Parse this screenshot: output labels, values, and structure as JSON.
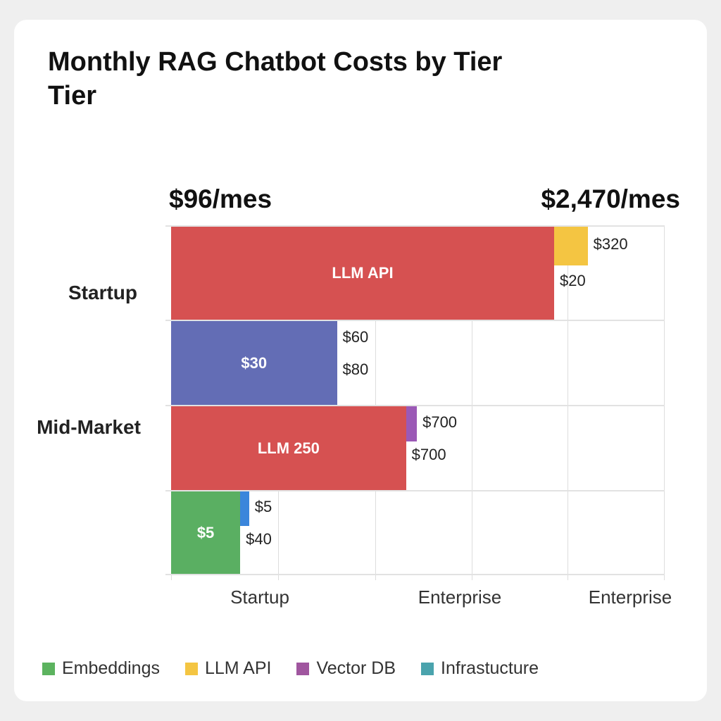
{
  "chart_data": {
    "type": "bar",
    "orientation": "horizontal-stacked",
    "title": "Monthly RAG Chatbot Costs by Tier",
    "title_line2": "Tier",
    "left_total": "$96/mes",
    "right_total": "$2,470/mes",
    "y_labels": [
      {
        "text": "Startup"
      },
      {
        "text": "Mid-Market"
      }
    ],
    "x_tick_labels": [
      "Startup",
      "Enterprise",
      "Enterprise"
    ],
    "xlim": [
      0,
      5
    ],
    "grid": true,
    "rows": [
      {
        "segments": [
          {
            "value": 3.88,
            "color": "#d65151",
            "label": "LLM API",
            "span": "full"
          },
          {
            "value": 0.34,
            "color": "#f4c542",
            "label": "",
            "span": "top"
          }
        ],
        "label_top": "$320",
        "label_bottom": "$20"
      },
      {
        "segments": [
          {
            "value": 1.68,
            "color": "#636db5",
            "label": "$30",
            "span": "full"
          }
        ],
        "label_top": "$60",
        "label_bottom": "$80"
      },
      {
        "segments": [
          {
            "value": 2.38,
            "color": "#d65151",
            "label": "LLM 250",
            "span": "full"
          },
          {
            "value": 0.11,
            "color": "#9b59b6",
            "label": "",
            "span": "top"
          }
        ],
        "label_top": "$700",
        "label_bottom": "$700"
      },
      {
        "segments": [
          {
            "value": 0.7,
            "color": "#5aaf62",
            "label": "$5",
            "span": "full"
          },
          {
            "value": 0.09,
            "color": "#3b86db",
            "label": "",
            "span": "top"
          }
        ],
        "label_top": "$5",
        "label_bottom": "$40"
      }
    ],
    "legend": [
      {
        "name": "Embeddings",
        "color": "#5cb35f"
      },
      {
        "name": "LLM API",
        "color": "#f4c542"
      },
      {
        "name": "Vector DB",
        "color": "#a0569f"
      },
      {
        "name": "Infrastucture",
        "color": "#4aa3ad"
      }
    ],
    "legend_position": "bottom"
  }
}
